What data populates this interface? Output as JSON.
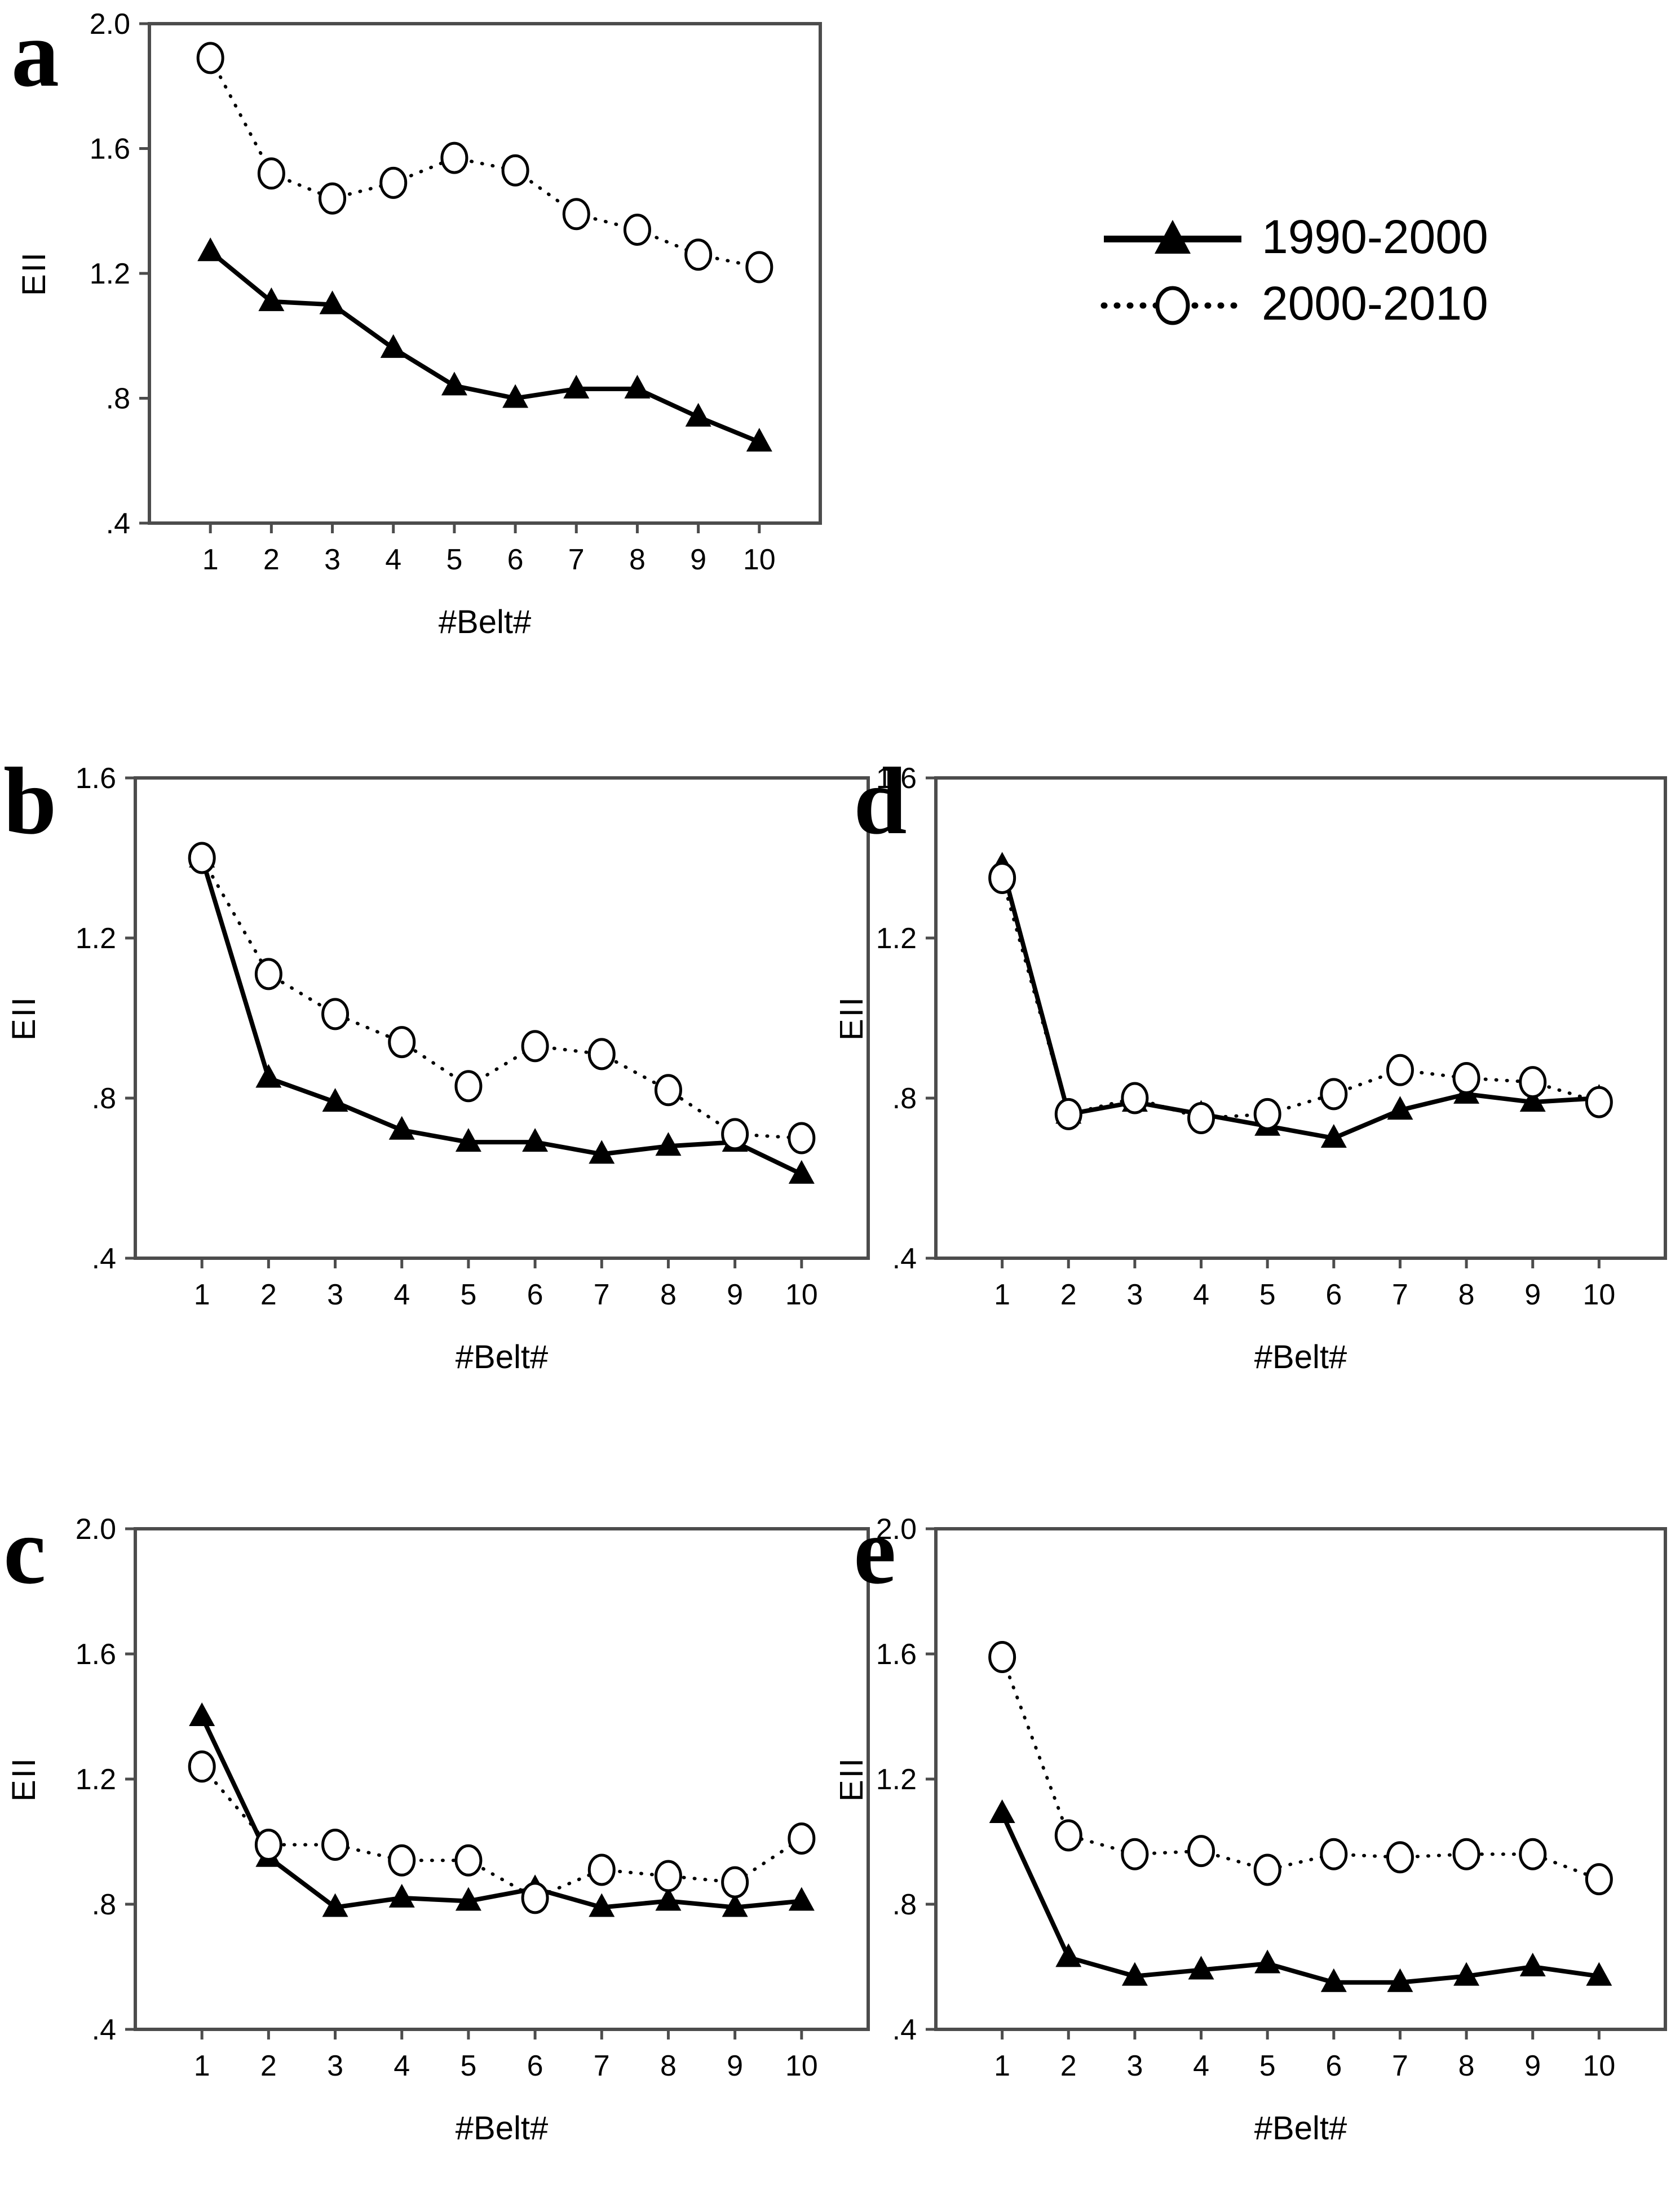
{
  "legend": {
    "position": "top-right",
    "items": [
      {
        "label": "1990-2000",
        "marker": "filled-triangle",
        "line": "solid"
      },
      {
        "label": "2000-2010",
        "marker": "open-circle",
        "line": "dotted"
      }
    ]
  },
  "colors": {
    "series": "#000000",
    "axis": "#4c4c4c",
    "background": "#ffffff",
    "text": "#000000"
  },
  "chart_data": [
    {
      "id": "a",
      "panel_label": "a",
      "type": "line",
      "xlabel": "#Belt#",
      "ylabel": "EII",
      "ylim": [
        0.4,
        2.0
      ],
      "grid": false,
      "x": [
        1,
        2,
        3,
        4,
        5,
        6,
        7,
        8,
        9,
        10
      ],
      "x_categories": [
        "1",
        "2",
        "3",
        "4",
        "5",
        "6",
        "7",
        "8",
        "9",
        "10"
      ],
      "yticks": [
        {
          "value": 2.0,
          "label": "2.0"
        },
        {
          "value": 1.6,
          "label": "1.6"
        },
        {
          "value": 1.2,
          "label": "1.2"
        },
        {
          "value": 0.8,
          "label": ".8"
        },
        {
          "value": 0.4,
          "label": ".4"
        }
      ],
      "series": [
        {
          "name": "1990-2000",
          "marker": "filled-triangle",
          "line": "solid",
          "values": [
            1.27,
            1.11,
            1.1,
            0.96,
            0.84,
            0.8,
            0.83,
            0.83,
            0.74,
            0.66
          ]
        },
        {
          "name": "2000-2010",
          "marker": "open-circle",
          "line": "dotted",
          "values": [
            1.89,
            1.52,
            1.44,
            1.49,
            1.57,
            1.53,
            1.39,
            1.34,
            1.26,
            1.22
          ]
        }
      ]
    },
    {
      "id": "b",
      "panel_label": "b",
      "type": "line",
      "xlabel": "#Belt#",
      "ylabel": "EII",
      "ylim": [
        0.4,
        1.6
      ],
      "grid": false,
      "x": [
        1,
        2,
        3,
        4,
        5,
        6,
        7,
        8,
        9,
        10
      ],
      "x_categories": [
        "1",
        "2",
        "3",
        "4",
        "5",
        "6",
        "7",
        "8",
        "9",
        "10"
      ],
      "yticks": [
        {
          "value": 1.6,
          "label": "1.6"
        },
        {
          "value": 1.2,
          "label": "1.2"
        },
        {
          "value": 0.8,
          "label": ".8"
        },
        {
          "value": 0.4,
          "label": ".4"
        }
      ],
      "series": [
        {
          "name": "1990-2000",
          "marker": "filled-triangle",
          "line": "solid",
          "values": [
            1.4,
            0.85,
            0.79,
            0.72,
            0.69,
            0.69,
            0.66,
            0.68,
            0.69,
            0.61
          ]
        },
        {
          "name": "2000-2010",
          "marker": "open-circle",
          "line": "dotted",
          "values": [
            1.4,
            1.11,
            1.01,
            0.94,
            0.83,
            0.93,
            0.91,
            0.82,
            0.71,
            0.7
          ]
        }
      ]
    },
    {
      "id": "c",
      "panel_label": "c",
      "type": "line",
      "xlabel": "#Belt#",
      "ylabel": "EII",
      "ylim": [
        0.4,
        2.0
      ],
      "grid": false,
      "x": [
        1,
        2,
        3,
        4,
        5,
        6,
        7,
        8,
        9,
        10
      ],
      "x_categories": [
        "1",
        "2",
        "3",
        "4",
        "5",
        "6",
        "7",
        "8",
        "9",
        "10"
      ],
      "yticks": [
        {
          "value": 2.0,
          "label": "2.0"
        },
        {
          "value": 1.6,
          "label": "1.6"
        },
        {
          "value": 1.2,
          "label": "1.2"
        },
        {
          "value": 0.8,
          "label": ".8"
        },
        {
          "value": 0.4,
          "label": ".4"
        }
      ],
      "series": [
        {
          "name": "1990-2000",
          "marker": "filled-triangle",
          "line": "solid",
          "values": [
            1.4,
            0.95,
            0.79,
            0.82,
            0.81,
            0.85,
            0.79,
            0.81,
            0.79,
            0.81
          ]
        },
        {
          "name": "2000-2010",
          "marker": "open-circle",
          "line": "dotted",
          "values": [
            1.24,
            0.99,
            0.99,
            0.94,
            0.94,
            0.82,
            0.91,
            0.89,
            0.87,
            1.01
          ]
        }
      ]
    },
    {
      "id": "d",
      "panel_label": "d",
      "type": "line",
      "xlabel": "#Belt#",
      "ylabel": "EII",
      "ylim": [
        0.4,
        1.6
      ],
      "grid": false,
      "x": [
        1,
        2,
        3,
        4,
        5,
        6,
        7,
        8,
        9,
        10
      ],
      "x_categories": [
        "1",
        "2",
        "3",
        "4",
        "5",
        "6",
        "7",
        "8",
        "9",
        "10"
      ],
      "yticks": [
        {
          "value": 1.6,
          "label": "1.6"
        },
        {
          "value": 1.2,
          "label": "1.2"
        },
        {
          "value": 0.8,
          "label": ".8"
        },
        {
          "value": 0.4,
          "label": ".4"
        }
      ],
      "series": [
        {
          "name": "1990-2000",
          "marker": "filled-triangle",
          "line": "solid",
          "values": [
            1.38,
            0.76,
            0.79,
            0.76,
            0.73,
            0.7,
            0.77,
            0.81,
            0.79,
            0.8
          ]
        },
        {
          "name": "2000-2010",
          "marker": "open-circle",
          "line": "dotted",
          "values": [
            1.35,
            0.76,
            0.8,
            0.75,
            0.76,
            0.81,
            0.87,
            0.85,
            0.84,
            0.79
          ]
        }
      ]
    },
    {
      "id": "e",
      "panel_label": "e",
      "type": "line",
      "xlabel": "#Belt#",
      "ylabel": "EII",
      "ylim": [
        0.4,
        2.0
      ],
      "grid": false,
      "x": [
        1,
        2,
        3,
        4,
        5,
        6,
        7,
        8,
        9,
        10
      ],
      "x_categories": [
        "1",
        "2",
        "3",
        "4",
        "5",
        "6",
        "7",
        "8",
        "9",
        "10"
      ],
      "yticks": [
        {
          "value": 2.0,
          "label": "2.0"
        },
        {
          "value": 1.6,
          "label": "1.6"
        },
        {
          "value": 1.2,
          "label": "1.2"
        },
        {
          "value": 0.8,
          "label": ".8"
        },
        {
          "value": 0.4,
          "label": ".4"
        }
      ],
      "series": [
        {
          "name": "1990-2000",
          "marker": "filled-triangle",
          "line": "solid",
          "values": [
            1.09,
            0.63,
            0.57,
            0.59,
            0.61,
            0.55,
            0.55,
            0.57,
            0.6,
            0.57
          ]
        },
        {
          "name": "2000-2010",
          "marker": "open-circle",
          "line": "dotted",
          "values": [
            1.59,
            1.02,
            0.96,
            0.97,
            0.91,
            0.96,
            0.95,
            0.96,
            0.96,
            0.88
          ]
        }
      ]
    }
  ]
}
